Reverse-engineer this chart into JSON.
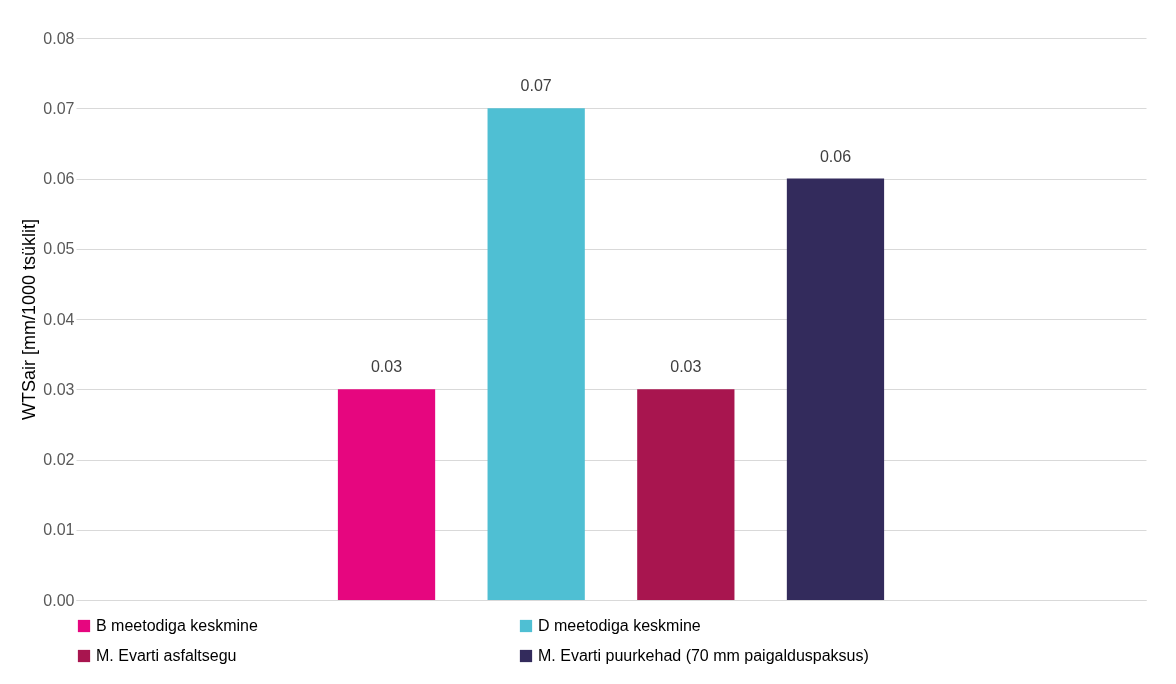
{
  "chart_data": {
    "type": "bar",
    "ylabel": "WTSair [mm/1000 tsüklit]",
    "categories": [
      null
    ],
    "series": [
      {
        "name": "B meetodiga keskmine",
        "color": "#e6067f",
        "values": [
          0.03
        ]
      },
      {
        "name": "D meetodiga keskmine",
        "color": "#4fbfd3",
        "values": [
          0.07
        ]
      },
      {
        "name": "M. Evarti asfaltsegu",
        "color": "#a8154f",
        "values": [
          0.03
        ]
      },
      {
        "name": "M. Evarti puurkehad (70 mm paigalduspaksus)",
        "color": "#332b5c",
        "values": [
          0.06
        ]
      }
    ],
    "ylim": [
      0,
      0.08
    ],
    "yticks": [
      {
        "value": 0,
        "label": "0.00"
      },
      0.01,
      0.02,
      0.03,
      0.04,
      0.05,
      0.06,
      0.07,
      0.08
    ],
    "grid": "y",
    "legend": "bottom",
    "data_labels": true
  }
}
